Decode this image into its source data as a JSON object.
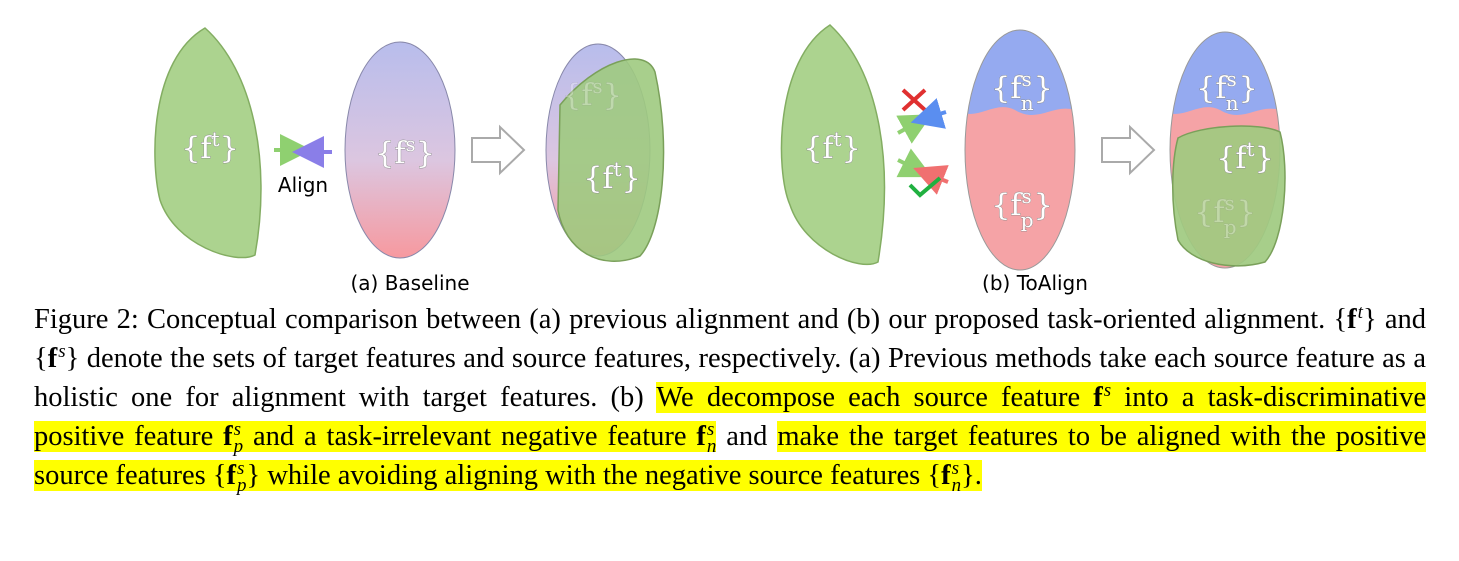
{
  "figure": {
    "panel_a": {
      "caption": "(a) Baseline",
      "align": "Align",
      "target": {
        "open": "{",
        "base": "f",
        "sup": "t",
        "close": "}"
      },
      "source": {
        "open": "{",
        "base": "f",
        "sup": "s",
        "close": "}"
      },
      "merged_source": {
        "open": "{",
        "base": "f",
        "sup": "s",
        "close": "}"
      },
      "merged_target": {
        "open": "{",
        "base": "f",
        "sup": "t",
        "close": "}"
      }
    },
    "panel_b": {
      "caption": "(b) ToAlign",
      "target": {
        "open": "{",
        "base": "f",
        "sup": "t",
        "close": "}"
      },
      "source_negative": {
        "open": "{",
        "base": "f",
        "sup": "s",
        "sub": "n",
        "close": "}"
      },
      "source_positive": {
        "open": "{",
        "base": "f",
        "sup": "s",
        "sub": "p",
        "close": "}"
      },
      "merged_negative": {
        "open": "{",
        "base": "f",
        "sup": "s",
        "sub": "n",
        "close": "}"
      },
      "merged_target": {
        "open": "{",
        "base": "f",
        "sup": "t",
        "close": "}"
      },
      "merged_positive": {
        "open": "{",
        "base": "f",
        "sup": "s",
        "sub": "p",
        "close": "}"
      }
    }
  },
  "caption": {
    "segments": [
      {
        "text": "Figure 2: Conceptual comparison between (a) previous alignment and (b) our proposed task-oriented alignment. "
      },
      {
        "math": {
          "open": "{",
          "base": "f",
          "sup": "t",
          "close": "}"
        }
      },
      {
        "text": " and "
      },
      {
        "math": {
          "open": "{",
          "base": "f",
          "sup": "s",
          "close": "}"
        }
      },
      {
        "text": " denote the sets of target features and source features, respectively. (a) Previous methods take each source feature as a holistic one for alignment with target features. (b) "
      },
      {
        "text": "We decompose each source feature ",
        "highlight": true
      },
      {
        "math": {
          "base": "f",
          "sup": "s"
        },
        "highlight": true
      },
      {
        "text": " into a task-discriminative positive feature ",
        "highlight": true
      },
      {
        "math": {
          "base": "f",
          "sup": "s",
          "sub": "p"
        },
        "highlight": true
      },
      {
        "text": " and a task-irrelevant negative feature ",
        "highlight": true
      },
      {
        "math": {
          "base": "f",
          "sup": "s",
          "sub": "n"
        },
        "highlight": true
      },
      {
        "text": " and "
      },
      {
        "text": " make the target features to be aligned with the positive source features ",
        "highlight": true
      },
      {
        "math": {
          "open": "{",
          "base": "f",
          "sup": "s",
          "sub": "p",
          "close": "}"
        },
        "highlight": true
      },
      {
        "text": " while avoiding aligning with the negative source features ",
        "highlight": true
      },
      {
        "math": {
          "open": "{",
          "base": "f",
          "sup": "s",
          "sub": "n",
          "close": "}"
        },
        "highlight": true
      },
      {
        "text": ".",
        "highlight": true
      }
    ]
  }
}
